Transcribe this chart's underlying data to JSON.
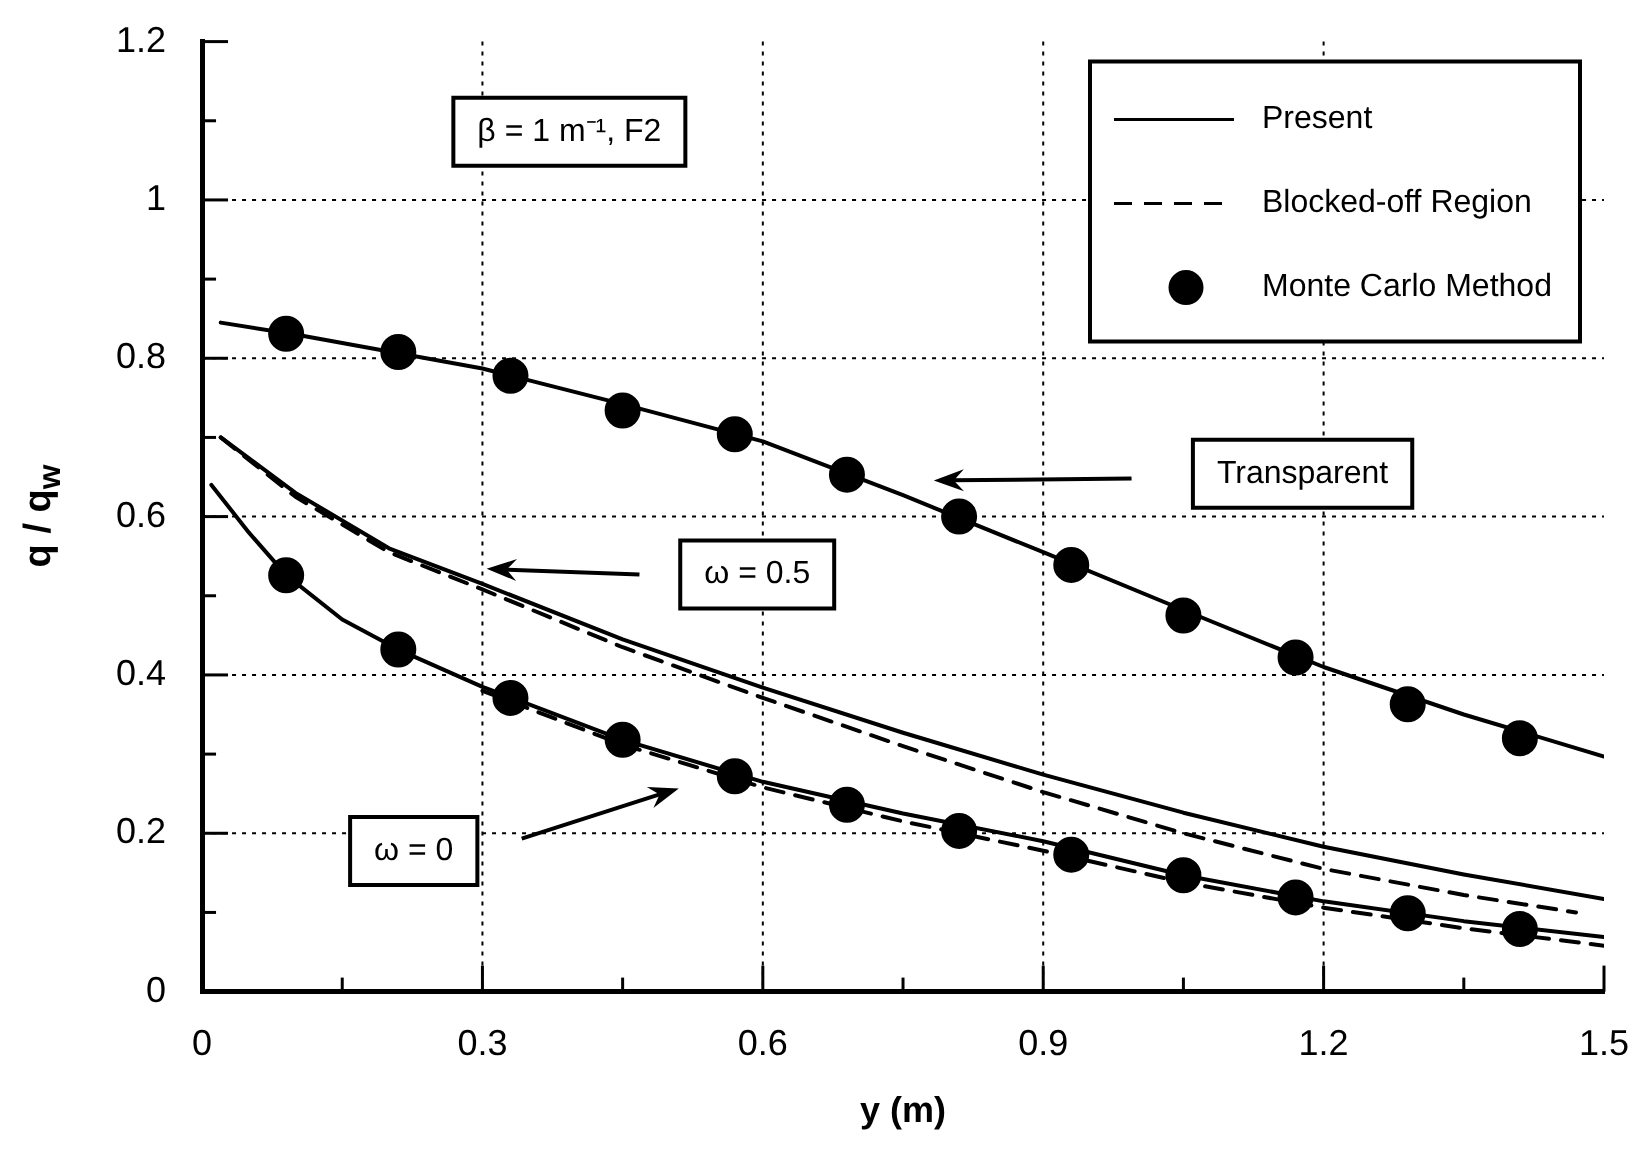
{
  "chart_data": {
    "type": "line",
    "xlabel": "y (m)",
    "ylabel": "q / q$_{w}$",
    "xlim": [
      0,
      1.5
    ],
    "ylim": [
      0,
      1.2
    ],
    "xticks": [
      0,
      {
        "value": 0.15,
        "label": null
      },
      0.3,
      {
        "value": 0.45,
        "label": null
      },
      0.6,
      {
        "value": 0.75,
        "label": null
      },
      0.9,
      {
        "value": 1.05,
        "label": null
      },
      1.2,
      {
        "value": 1.35,
        "label": null
      },
      1.5
    ],
    "yticks": [
      0,
      {
        "value": 0.1,
        "label": null
      },
      0.2,
      {
        "value": 0.3,
        "label": null
      },
      0.4,
      {
        "value": 0.5,
        "label": null
      },
      0.6,
      {
        "value": 0.7,
        "label": null
      },
      0.8,
      {
        "value": 0.9,
        "label": null
      },
      1,
      {
        "value": 1.1,
        "label": null
      },
      1.2
    ],
    "grid": true,
    "legend": "top right",
    "marker": "none",
    "series": [
      {
        "name": "Present",
        "line_style": "solid",
        "color": "#000000",
        "x": [
          0.02,
          0.1,
          0.3,
          0.45,
          0.6,
          0.75,
          0.9,
          1.05,
          1.2,
          1.35,
          1.5
        ],
        "values": [
          0.845,
          0.83,
          0.787,
          0.742,
          0.695,
          0.627,
          0.555,
          0.482,
          0.41,
          0.35,
          0.297
        ]
      },
      {
        "line_style": "solid",
        "color": "#000000",
        "x": [
          0.02,
          0.1,
          0.2,
          0.3,
          0.45,
          0.6,
          0.75,
          0.9,
          1.05,
          1.2,
          1.35,
          1.5
        ],
        "values": [
          0.7,
          0.63,
          0.56,
          0.515,
          0.445,
          0.384,
          0.327,
          0.274,
          0.226,
          0.183,
          0.148,
          0.117
        ]
      },
      {
        "line_style": "solid",
        "color": "#000000",
        "x": [
          0.01,
          0.05,
          0.09,
          0.15,
          0.21,
          0.3,
          0.45,
          0.6,
          0.75,
          0.9,
          1.05,
          1.2,
          1.35,
          1.5
        ],
        "values": [
          0.64,
          0.58,
          0.526,
          0.47,
          0.432,
          0.385,
          0.318,
          0.265,
          0.225,
          0.19,
          0.147,
          0.114,
          0.089,
          0.069
        ]
      },
      {
        "name": "Blocked-off Region",
        "line_style": "dashed",
        "color": "#000000",
        "x": [
          0.02,
          0.1,
          0.2,
          0.3,
          0.45,
          0.6,
          0.75,
          0.9,
          1.05,
          1.2,
          1.35,
          1.47
        ],
        "values": [
          0.7,
          0.625,
          0.555,
          0.508,
          0.435,
          0.371,
          0.31,
          0.252,
          0.2,
          0.155,
          0.122,
          0.1
        ]
      },
      {
        "line_style": "dashed",
        "color": "#000000",
        "x": [
          0.3,
          0.45,
          0.6,
          0.75,
          0.9,
          1.05,
          1.2,
          1.35,
          1.5
        ],
        "values": [
          0.38,
          0.312,
          0.258,
          0.215,
          0.178,
          0.138,
          0.106,
          0.08,
          0.058
        ]
      },
      {
        "name": "Monte Carlo Method",
        "type": "scatter",
        "marker": "circle",
        "color": "#000000",
        "x": [
          0.09,
          0.21,
          0.33,
          0.45,
          0.57,
          0.69,
          0.81,
          0.93,
          1.05,
          1.17,
          1.29,
          1.41
        ],
        "values": [
          0.831,
          0.808,
          0.778,
          0.734,
          0.704,
          0.653,
          0.6,
          0.539,
          0.475,
          0.422,
          0.363,
          0.32
        ]
      },
      {
        "type": "scatter",
        "marker": "circle",
        "color": "#000000",
        "x": [
          0.09,
          0.21,
          0.33,
          0.45,
          0.57,
          0.69,
          0.81,
          0.93,
          1.05,
          1.17,
          1.29,
          1.41
        ],
        "values": [
          0.526,
          0.432,
          0.371,
          0.318,
          0.272,
          0.236,
          0.203,
          0.173,
          0.147,
          0.119,
          0.099,
          0.079
        ]
      }
    ],
    "annotations": [
      "β = 1 m⁻¹, F2",
      "Transparent",
      "ω = 0.5",
      "ω = 0"
    ]
  }
}
